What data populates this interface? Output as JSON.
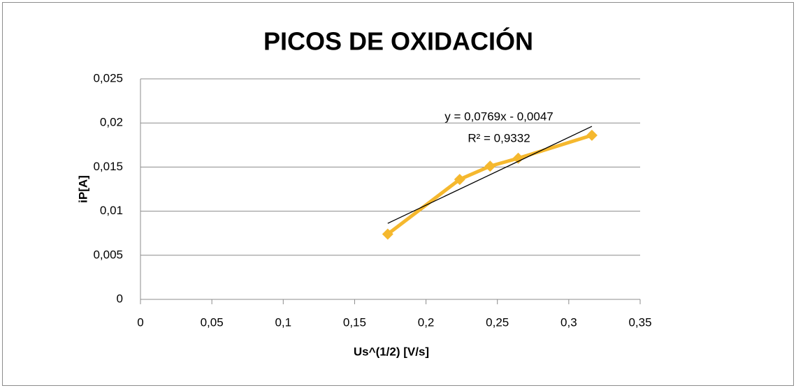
{
  "chart_data": {
    "type": "line",
    "title": "PICOS DE OXIDACIÓN",
    "x_label": "Us^(1/2) [V/s]",
    "y_label": "iP[A]",
    "x": [
      0.1732,
      0.2236,
      0.2449,
      0.2646,
      0.3162
    ],
    "series": [
      {
        "color": "#f5b82e",
        "values": [
          0.0074,
          0.0136,
          0.0151,
          0.016,
          0.0186
        ]
      }
    ],
    "xlim": [
      0,
      0.35
    ],
    "xticks": [
      0,
      {
        "value": 0.05,
        "label": "0,05"
      },
      {
        "value": 0.1,
        "label": "0,1"
      },
      {
        "value": 0.15,
        "label": "0,15"
      },
      {
        "value": 0.2,
        "label": "0,2"
      },
      {
        "value": 0.25,
        "label": "0,25"
      },
      {
        "value": 0.3,
        "label": "0,3"
      },
      {
        "value": 0.35,
        "label": "0,35"
      }
    ],
    "ylim": [
      0,
      0.025
    ],
    "yticks": [
      0,
      {
        "value": 0.005,
        "label": "0,005"
      },
      {
        "value": 0.01,
        "label": "0,01"
      },
      {
        "value": 0.015,
        "label": "0,015"
      },
      {
        "value": 0.02,
        "label": "0,02"
      },
      {
        "value": 0.025,
        "label": "0,025"
      }
    ],
    "grid": true,
    "trendline": {
      "slope": 0.0769,
      "intercept": -0.0047,
      "color": "#000000",
      "equation": "y = 0,0769x - 0,0047",
      "r_squared": "R² = 0,9332"
    }
  }
}
